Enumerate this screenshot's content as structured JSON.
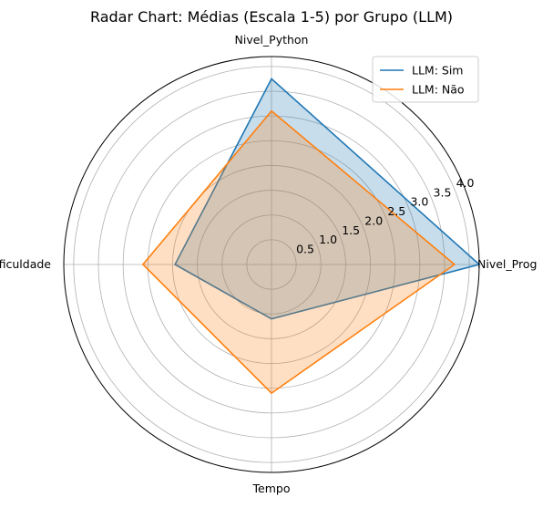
{
  "chart_data": {
    "type": "radar",
    "title": "Radar Chart: Médias (Escala 1-5) por Grupo (LLM)",
    "axes": [
      "Nivel_Prog",
      "Nivel_Python",
      "Dificuldade",
      "Tempo"
    ],
    "rlim": [
      0,
      4.2
    ],
    "rticks": [
      0.5,
      1.0,
      1.5,
      2.0,
      2.5,
      3.0,
      3.5,
      4.0
    ],
    "rtick_labels": [
      "0.5",
      "1.0",
      "1.5",
      "2.0",
      "2.5",
      "3.0",
      "3.5",
      "4.0"
    ],
    "grid": true,
    "legend_position": "top-right",
    "series": [
      {
        "name": "LLM: Sim",
        "color": "#1f77b4",
        "values": [
          4.2,
          3.75,
          1.95,
          1.1
        ]
      },
      {
        "name": "LLM: Não",
        "color": "#ff7f0e",
        "values": [
          3.7,
          3.1,
          2.6,
          2.6
        ]
      }
    ]
  }
}
